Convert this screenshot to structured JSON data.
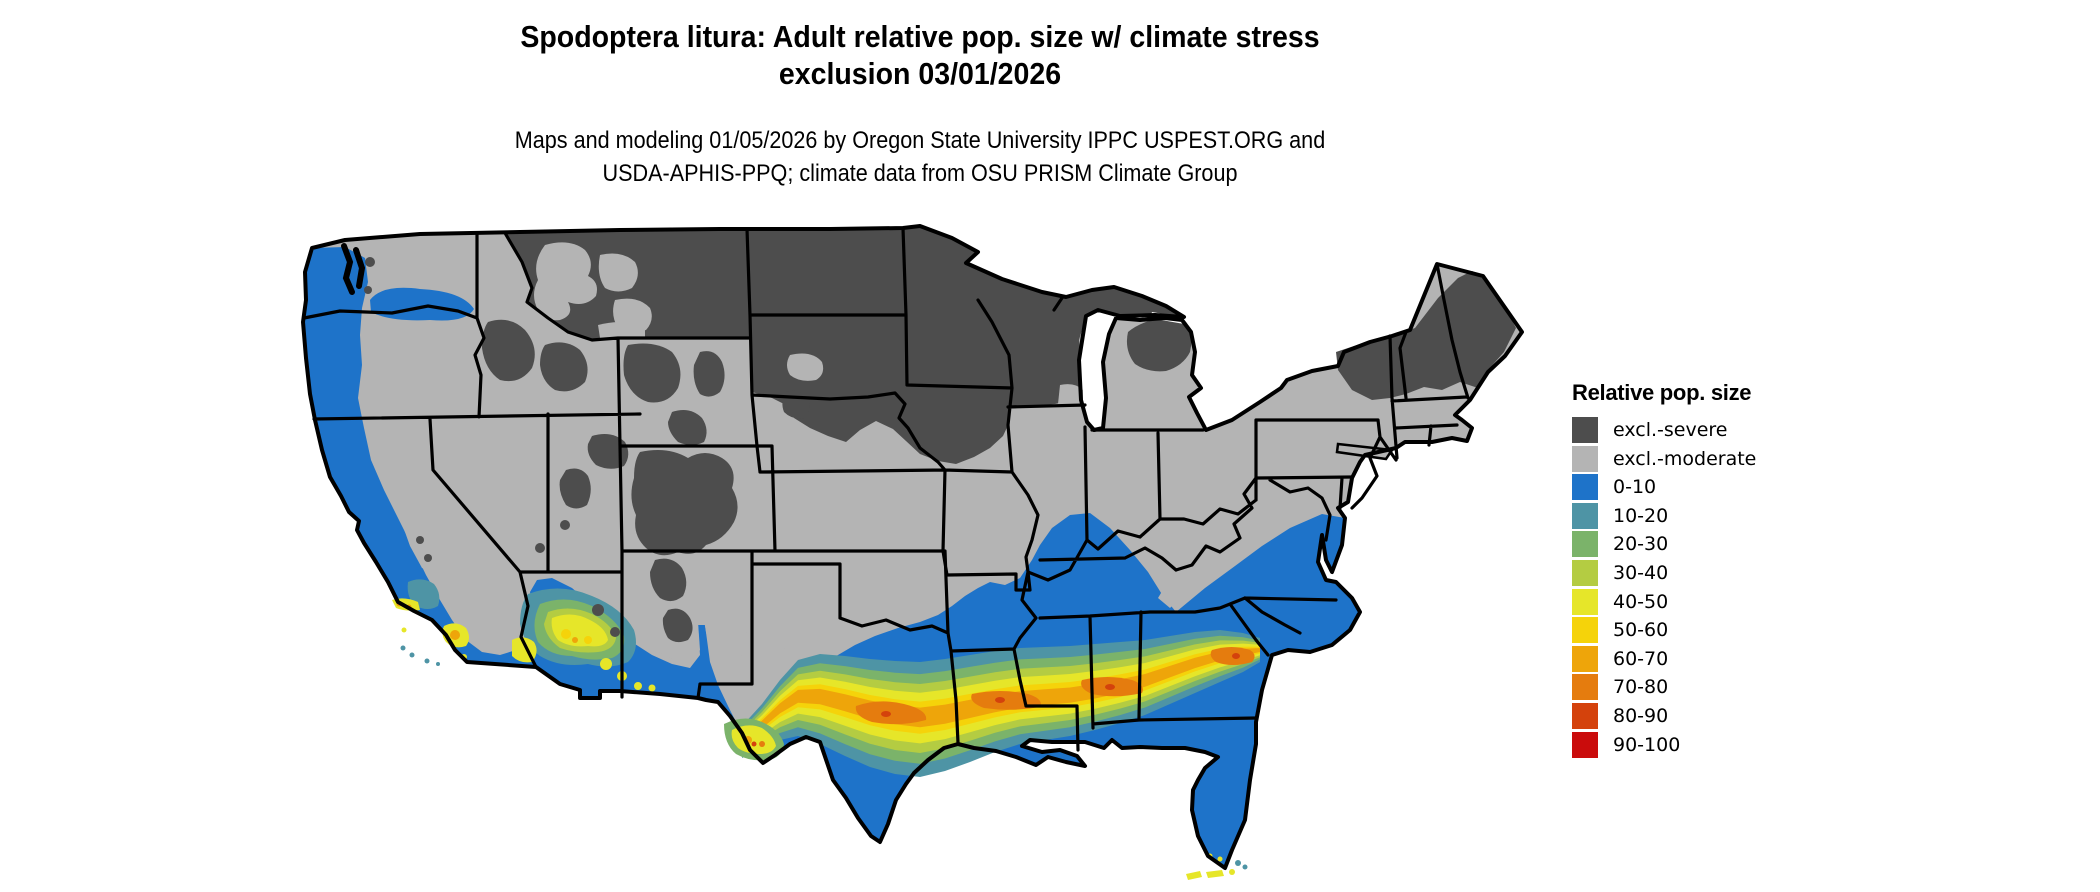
{
  "title": {
    "line1": "Spodoptera litura: Adult relative pop. size w/ climate stress",
    "line2": "exclusion 03/01/2026"
  },
  "subtitle": {
    "line1": "Maps and modeling 01/05/2026 by Oregon State University IPPC USPEST.ORG and",
    "line2": "USDA-APHIS-PPQ; climate data from OSU PRISM Climate Group"
  },
  "legend": {
    "title": "Relative pop. size",
    "items": [
      {
        "label": "excl.-severe",
        "color": "#4d4d4d"
      },
      {
        "label": "excl.-moderate",
        "color": "#b4b4b4"
      },
      {
        "label": "0-10",
        "color": "#1e73c9"
      },
      {
        "label": "10-20",
        "color": "#4e94a5"
      },
      {
        "label": "20-30",
        "color": "#7bb36a"
      },
      {
        "label": "30-40",
        "color": "#b4cc42"
      },
      {
        "label": "40-50",
        "color": "#e6e629"
      },
      {
        "label": "50-60",
        "color": "#f5d30a"
      },
      {
        "label": "60-70",
        "color": "#eea50a"
      },
      {
        "label": "70-80",
        "color": "#e57c0e"
      },
      {
        "label": "80-90",
        "color": "#d4420c"
      },
      {
        "label": "90-100",
        "color": "#ca0c0c"
      }
    ]
  },
  "map": {
    "area": "Continental United States",
    "palette": {
      "severe": "#4d4d4d",
      "moderate": "#b4b4b4",
      "p0": "#1e73c9",
      "p10": "#4e94a5",
      "p20": "#7bb36a",
      "p30": "#b4cc42",
      "p40": "#e6e629",
      "p50": "#f5d30a",
      "p60": "#eea50a",
      "p70": "#e57c0e",
      "p80": "#d4420c",
      "p90": "#ca0c0c",
      "border": "#000000",
      "water": "#ffffff"
    },
    "zones": [
      {
        "class": "excl.-severe",
        "where": "Northern tier (MT, ND, MN, WI, upper MI, northern New England) and Rocky Mountain highlands"
      },
      {
        "class": "excl.-moderate",
        "where": "Central band from inland Northwest through Plains, Midwest and Mid-Atlantic"
      },
      {
        "class": "0-10",
        "where": "Pacific coast, Southwest border, southern Plains and Southeast"
      },
      {
        "class": "10-100",
        "where": "Gulf Coast arc from south Texas to coastal South Carolina, southern Arizona / California hotspots, Florida Keys"
      }
    ]
  }
}
